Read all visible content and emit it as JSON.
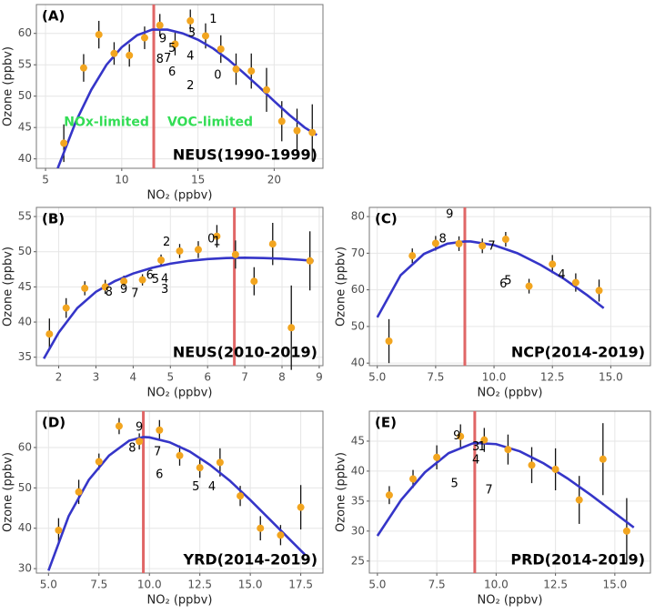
{
  "chart_data": [
    {
      "type": "scatter",
      "panel_label": "(A)",
      "region": "NEUS(1990-1999)",
      "xlabel": "NO₂ (ppbv)",
      "ylabel": "Ozone (ppbv)",
      "xlim": [
        4.4,
        23.2
      ],
      "ylim": [
        38.5,
        64.6
      ],
      "xticks": [
        5,
        10,
        15,
        20
      ],
      "yticks": [
        40,
        45,
        50,
        55,
        60
      ],
      "grid": true,
      "point_color": "#f2a51f",
      "fit_color": "#3535c8",
      "threshold_color": "#e06666",
      "threshold": 12.1,
      "x": [
        6.2,
        7.5,
        8.5,
        9.5,
        10.5,
        11.5,
        12.5,
        13.5,
        14.5,
        15.5,
        16.5,
        17.5,
        18.5,
        19.5,
        20.5,
        21.5,
        22.5
      ],
      "values": [
        42.5,
        54.5,
        59.8,
        56.8,
        56.5,
        59.3,
        61.3,
        58.3,
        62,
        59.6,
        57.5,
        54.3,
        54,
        51,
        46,
        44.5,
        44.2
      ],
      "errors": [
        3,
        2.2,
        2.2,
        1.8,
        1.8,
        1.8,
        1.8,
        1.8,
        1.8,
        2,
        2.2,
        2.5,
        2.8,
        3.5,
        3.2,
        3.5,
        4.5
      ],
      "fit": {
        "x": [
          5.8,
          7,
          8,
          9,
          10,
          11,
          12,
          13,
          14,
          15,
          16,
          17,
          18,
          19,
          20,
          21,
          22,
          22.8
        ],
        "values": [
          38.5,
          46,
          51,
          55,
          57.8,
          59.7,
          60.6,
          60.6,
          60,
          59,
          57.6,
          55.8,
          53.7,
          51.5,
          49.2,
          47,
          45,
          43.8
        ]
      },
      "point_labels": [
        {
          "text": "1",
          "x": 16.0,
          "y": 62.2
        },
        {
          "text": "9",
          "x": 12.7,
          "y": 59.1
        },
        {
          "text": "3",
          "x": 14.6,
          "y": 60
        },
        {
          "text": "5",
          "x": 13.3,
          "y": 57.6
        },
        {
          "text": "4",
          "x": 14.5,
          "y": 56.3
        },
        {
          "text": "8",
          "x": 12.5,
          "y": 55.8
        },
        {
          "text": "7",
          "x": 13.0,
          "y": 56
        },
        {
          "text": "6",
          "x": 13.3,
          "y": 53.8
        },
        {
          "text": "0",
          "x": 16.3,
          "y": 53.3
        },
        {
          "text": "2",
          "x": 14.5,
          "y": 51.6
        }
      ],
      "notes": [
        {
          "text": "NOx-limited",
          "x": 9.0,
          "y": 45.8,
          "color": "#33dd55"
        },
        {
          "text": "VOC-limited",
          "x": 15.8,
          "y": 45.8,
          "color": "#33dd55"
        }
      ]
    },
    {
      "type": "scatter",
      "panel_label": "(B)",
      "region": "NEUS(2010-2019)",
      "xlabel": "NO₂ (ppbv)",
      "ylabel": "Ozone (ppbv)",
      "xlim": [
        1.4,
        9.1
      ],
      "ylim": [
        33.8,
        56.3
      ],
      "xticks": [
        2,
        3,
        4,
        5,
        6,
        7,
        8,
        9
      ],
      "yticks": [
        35,
        40,
        45,
        50,
        55
      ],
      "grid": true,
      "point_color": "#f2a51f",
      "fit_color": "#3535c8",
      "threshold_color": "#e06666",
      "threshold": 6.72,
      "x": [
        1.75,
        2.2,
        2.7,
        3.25,
        3.75,
        4.25,
        4.75,
        5.25,
        5.75,
        6.25,
        6.75,
        7.25,
        7.75,
        8.25,
        8.75
      ],
      "values": [
        38.3,
        42,
        44.8,
        45,
        45.8,
        46,
        48.8,
        50.1,
        50.3,
        52.2,
        49.6,
        45.8,
        51.1,
        39.2,
        48.7
      ],
      "errors": [
        2.2,
        1.4,
        1,
        1,
        0.8,
        0.8,
        0.8,
        1,
        1.2,
        1.6,
        2,
        2,
        3,
        6,
        4.2
      ],
      "fit": {
        "x": [
          1.6,
          2,
          2.5,
          3,
          3.5,
          4,
          4.5,
          5,
          5.5,
          6,
          6.5,
          7,
          7.5,
          8,
          8.5,
          8.85
        ],
        "values": [
          34.8,
          38.5,
          42,
          44.3,
          45.8,
          46.9,
          47.7,
          48.3,
          48.7,
          48.95,
          49.1,
          49.15,
          49.1,
          49,
          48.85,
          48.7
        ]
      },
      "point_labels": [
        {
          "text": "2",
          "x": 4.9,
          "y": 51.3
        },
        {
          "text": "0",
          "x": 6.1,
          "y": 51.8
        },
        {
          "text": "1",
          "x": 6.25,
          "y": 51.4
        },
        {
          "text": "6",
          "x": 4.45,
          "y": 46.6
        },
        {
          "text": "5",
          "x": 4.6,
          "y": 46
        },
        {
          "text": "4",
          "x": 4.85,
          "y": 46.1
        },
        {
          "text": "3",
          "x": 4.85,
          "y": 44.6
        },
        {
          "text": "8",
          "x": 3.35,
          "y": 44.2
        },
        {
          "text": "9",
          "x": 3.75,
          "y": 44.6
        },
        {
          "text": "7",
          "x": 4.05,
          "y": 44
        }
      ]
    },
    {
      "type": "scatter",
      "panel_label": "(C)",
      "region": "NCP(2014-2019)",
      "xlabel": "NO₂ (ppbv)",
      "ylabel": "Ozone (ppbv)",
      "xlim": [
        4.66,
        16.7
      ],
      "ylim": [
        39.3,
        82.5
      ],
      "xticks": [
        {
          "value": 5,
          "label": "5.0"
        },
        {
          "value": 7.5,
          "label": "7.5"
        },
        {
          "value": 10,
          "label": "10.0"
        },
        {
          "value": 12.5,
          "label": "12.5"
        },
        {
          "value": 15,
          "label": "15.0"
        }
      ],
      "yticks": [
        40,
        50,
        60,
        70,
        80
      ],
      "grid": true,
      "point_color": "#f2a51f",
      "fit_color": "#3535c8",
      "threshold_color": "#e06666",
      "threshold": 8.75,
      "x": [
        5.5,
        6.5,
        7.5,
        8.5,
        9.5,
        10.5,
        11.5,
        12.5,
        13.5,
        14.5
      ],
      "values": [
        46,
        69.3,
        72.7,
        72.6,
        72,
        73.8,
        61,
        67,
        62,
        59.8
      ],
      "errors": [
        6,
        2,
        2,
        2,
        2,
        2,
        2,
        2.5,
        2.5,
        3
      ],
      "fit": {
        "x": [
          5,
          6,
          7,
          8,
          8.75,
          9,
          10,
          11,
          12,
          13,
          14,
          14.7
        ],
        "values": [
          52.5,
          64,
          69.8,
          72.6,
          73.2,
          73.2,
          72.2,
          70,
          66.8,
          63,
          58.5,
          55
        ]
      },
      "point_labels": [
        {
          "text": "9",
          "x": 8.1,
          "y": 80.5
        },
        {
          "text": "8",
          "x": 7.8,
          "y": 73.8
        },
        {
          "text": "7",
          "x": 9.9,
          "y": 71.8
        },
        {
          "text": "6",
          "x": 10.4,
          "y": 61.5
        },
        {
          "text": "5",
          "x": 10.6,
          "y": 62.4
        },
        {
          "text": "4",
          "x": 12.9,
          "y": 64
        }
      ]
    },
    {
      "type": "scatter",
      "panel_label": "(D)",
      "region": "YRD(2014-2019)",
      "xlabel": "NO₂ (ppbv)",
      "ylabel": "Ozone (ppbv)",
      "xlim": [
        4.4,
        18.6
      ],
      "ylim": [
        28.9,
        69
      ],
      "xticks": [
        {
          "value": 5,
          "label": "5.0"
        },
        {
          "value": 7.5,
          "label": "7.5"
        },
        {
          "value": 10,
          "label": "10.0"
        },
        {
          "value": 12.5,
          "label": "12.5"
        },
        {
          "value": 15,
          "label": "15.0"
        },
        {
          "value": 17.5,
          "label": "17.5"
        }
      ],
      "yticks": [
        30,
        40,
        50,
        60
      ],
      "grid": true,
      "point_color": "#f2a51f",
      "fit_color": "#3535c8",
      "threshold_color": "#e06666",
      "threshold": 9.7,
      "x": [
        5.5,
        6.5,
        7.5,
        8.5,
        9.5,
        10.5,
        11.5,
        12.5,
        13.5,
        14.5,
        15.5,
        16.5,
        17.5
      ],
      "values": [
        39.5,
        49,
        56.5,
        65.3,
        61.5,
        64.3,
        58,
        55,
        56.3,
        48,
        40,
        38.3,
        45.2
      ],
      "errors": [
        3,
        3,
        2,
        2,
        2,
        2.5,
        2.5,
        2.5,
        3.5,
        2.5,
        3,
        2.5,
        5.5
      ],
      "fit": {
        "x": [
          5,
          6,
          7,
          8,
          9,
          9.7,
          10,
          11,
          12,
          13,
          14,
          15,
          16,
          17,
          17.7
        ],
        "values": [
          29.5,
          43,
          52,
          58,
          61.7,
          62.6,
          62.5,
          61.3,
          59,
          55.7,
          51.7,
          47,
          42,
          37,
          33.5
        ]
      },
      "point_labels": [
        {
          "text": "9",
          "x": 9.5,
          "y": 65
        },
        {
          "text": "8",
          "x": 9.15,
          "y": 59.8
        },
        {
          "text": "7",
          "x": 10.4,
          "y": 58.9
        },
        {
          "text": "6",
          "x": 10.5,
          "y": 53.2
        },
        {
          "text": "5",
          "x": 12.3,
          "y": 50.2
        },
        {
          "text": "4",
          "x": 13.1,
          "y": 50.2
        }
      ]
    },
    {
      "type": "scatter",
      "panel_label": "(E)",
      "region": "PRD(2014-2019)",
      "xlabel": "NO₂ (ppbv)",
      "ylabel": "Ozone (ppbv)",
      "xlim": [
        4.66,
        16.5
      ],
      "ylim": [
        23,
        50
      ],
      "xticks": [
        {
          "value": 5,
          "label": "5.0"
        },
        {
          "value": 7.5,
          "label": "7.5"
        },
        {
          "value": 10,
          "label": "10.0"
        },
        {
          "value": 12.5,
          "label": "12.5"
        },
        {
          "value": 15,
          "label": "15.0"
        }
      ],
      "yticks": [
        25,
        30,
        35,
        40,
        45
      ],
      "grid": true,
      "point_color": "#f2a51f",
      "fit_color": "#3535c8",
      "threshold_color": "#e06666",
      "threshold": 9.1,
      "x": [
        5.5,
        6.5,
        7.5,
        8.5,
        9.5,
        10.5,
        11.5,
        12.5,
        13.5,
        14.5,
        15.5
      ],
      "values": [
        36,
        38.7,
        42.3,
        45.8,
        45.2,
        43.6,
        41,
        40.3,
        35.2,
        42,
        30
      ],
      "errors": [
        1.5,
        1.5,
        2,
        2,
        2,
        2.5,
        3,
        3.5,
        4,
        6,
        5.5
      ],
      "fit": {
        "x": [
          5,
          6,
          7,
          8,
          9,
          9.1,
          10,
          11,
          12,
          13,
          14,
          15,
          15.8
        ],
        "values": [
          29.2,
          35.2,
          39.8,
          43,
          44.6,
          44.7,
          44.5,
          43.3,
          41.3,
          38.8,
          36,
          33,
          30.6
        ]
      },
      "point_labels": [
        {
          "text": "9",
          "x": 8.35,
          "y": 45.8
        },
        {
          "text": "3",
          "x": 9.15,
          "y": 44
        },
        {
          "text": "1",
          "x": 9.4,
          "y": 44
        },
        {
          "text": "4",
          "x": 9.15,
          "y": 41.8
        },
        {
          "text": "5",
          "x": 8.25,
          "y": 37.9
        },
        {
          "text": "7",
          "x": 9.7,
          "y": 36.8
        }
      ]
    }
  ]
}
